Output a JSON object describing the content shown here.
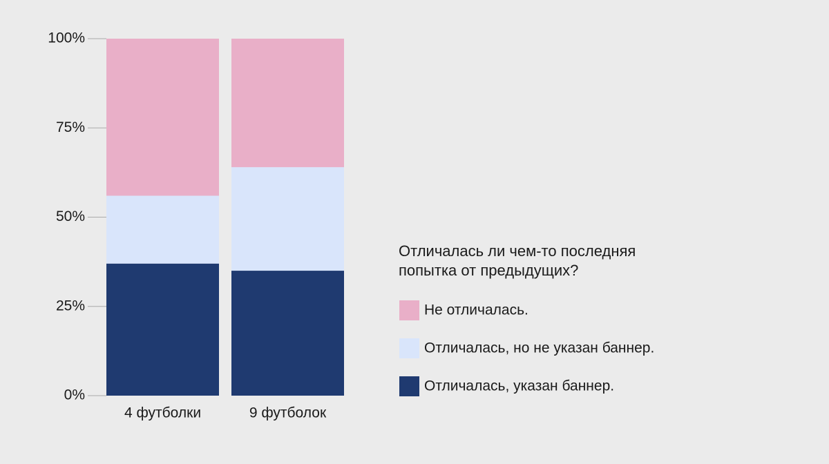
{
  "chart_data": {
    "type": "stacked_bar",
    "legend_title": "Отличалась ли чем-то последняя попытка от предыдущих?",
    "categories": [
      "4 футболки",
      "9 футболок"
    ],
    "series": [
      {
        "name": "Не отличалась.",
        "color": "#e9afc8",
        "values": [
          44,
          36
        ]
      },
      {
        "name": "Отличалась, но не указан баннер.",
        "color": "#d9e5fb",
        "values": [
          19,
          29
        ]
      },
      {
        "name": "Отличалась, указан баннер.",
        "color": "#1f3a70",
        "values": [
          37,
          35
        ]
      }
    ],
    "ylim": [
      0,
      100
    ],
    "yticks": [
      {
        "value": 0,
        "label": "0%"
      },
      {
        "value": 25,
        "label": "25%"
      },
      {
        "value": 50,
        "label": "50%"
      },
      {
        "value": 75,
        "label": "75%"
      },
      {
        "value": 100,
        "label": "100%"
      }
    ],
    "legend": "right"
  }
}
